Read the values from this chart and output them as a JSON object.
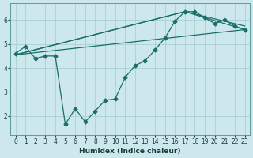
{
  "xlabel": "Humidex (Indice chaleur)",
  "background_color": "#cce8ec",
  "grid_color": "#aacfd4",
  "line_color": "#1a6e6a",
  "xlim": [
    -0.5,
    23.5
  ],
  "ylim": [
    1.2,
    6.7
  ],
  "yticks": [
    2,
    3,
    4,
    5,
    6
  ],
  "xticks": [
    0,
    1,
    2,
    3,
    4,
    5,
    6,
    7,
    8,
    9,
    10,
    11,
    12,
    13,
    14,
    15,
    16,
    17,
    18,
    19,
    20,
    21,
    22,
    23
  ],
  "main_line": {
    "x": [
      0,
      1,
      2,
      3,
      4,
      5,
      6,
      7,
      8,
      9,
      10,
      11,
      12,
      13,
      14,
      15,
      16,
      17,
      18,
      19,
      20,
      21,
      22,
      23
    ],
    "y": [
      4.6,
      4.9,
      4.4,
      4.5,
      4.5,
      1.65,
      2.3,
      1.75,
      2.2,
      2.65,
      2.7,
      3.6,
      4.1,
      4.3,
      4.75,
      5.25,
      5.95,
      6.35,
      6.35,
      6.1,
      5.85,
      6.0,
      5.75,
      5.6
    ]
  },
  "smooth_lines": [
    {
      "x": [
        0,
        23
      ],
      "y": [
        4.55,
        5.6
      ]
    },
    {
      "x": [
        0,
        17,
        23
      ],
      "y": [
        4.55,
        6.35,
        5.6
      ]
    },
    {
      "x": [
        0,
        17,
        23
      ],
      "y": [
        4.55,
        6.35,
        5.75
      ]
    }
  ]
}
